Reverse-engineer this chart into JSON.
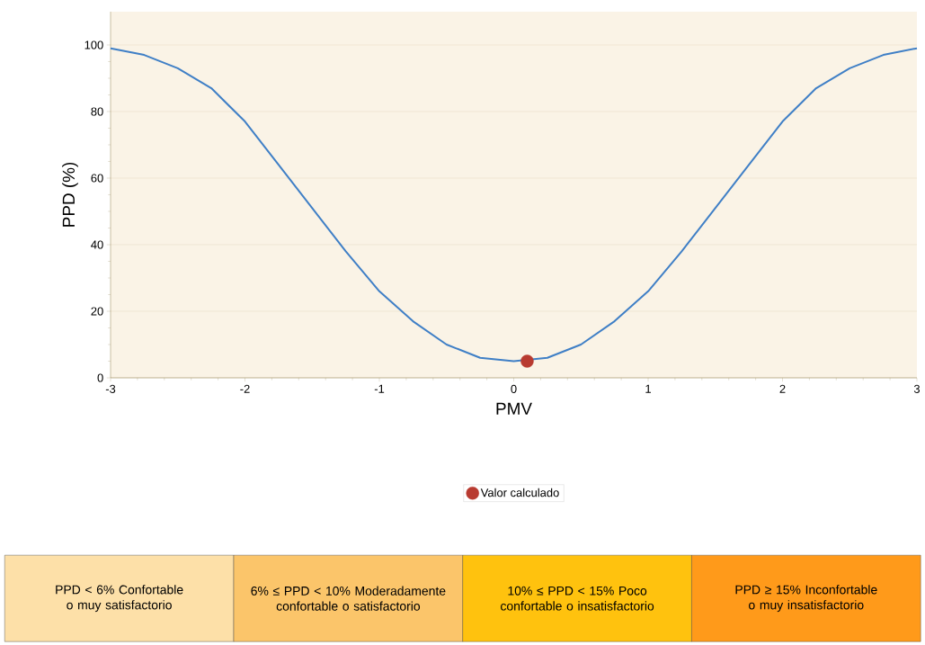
{
  "chart_data": {
    "type": "line",
    "xlabel": "PMV",
    "ylabel": "PPD (%)",
    "xlim": [
      -3,
      3
    ],
    "ylim": [
      0,
      110
    ],
    "xticks": [
      -3,
      -2,
      -1,
      0,
      1,
      2,
      3
    ],
    "yticks": [
      0,
      20,
      40,
      60,
      80,
      100
    ],
    "grid": "y",
    "legend": "bottom",
    "line_style": "solid",
    "series": [
      {
        "color": "#3f7fc6",
        "marker": "none",
        "x": [
          -3,
          -2.75,
          -2.5,
          -2.25,
          -2,
          -1.75,
          -1.5,
          -1.25,
          -1,
          -0.75,
          -0.5,
          -0.25,
          0,
          0.25,
          0.5,
          0.75,
          1,
          1.25,
          1.5,
          1.75,
          2,
          2.25,
          2.5,
          2.75,
          3
        ],
        "values": [
          99,
          97,
          93,
          87,
          77,
          64,
          51,
          38,
          26,
          17,
          10,
          6,
          5,
          6,
          10,
          17,
          26,
          38,
          51,
          64,
          77,
          87,
          93,
          97,
          99
        ]
      },
      {
        "type": "scatter",
        "name": "Valor calculado",
        "color": "#b83a30",
        "x": [
          0.1
        ],
        "values": [
          5
        ]
      }
    ],
    "annotations": [
      "PPD < 6% Confortable o muy satisfactorio",
      "6% ≤ PPD < 10% Moderadamente confortable o satisfactorio",
      "10% ≤ PPD < 15% Poco confortable o insatisfactorio",
      "PPD ≥ 15% Inconfortable o muy insatisfactorio"
    ]
  }
}
